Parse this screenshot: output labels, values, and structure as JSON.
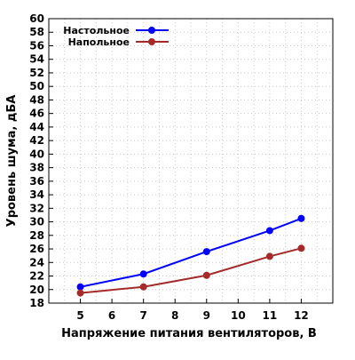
{
  "chart_data": {
    "type": "line",
    "xlabel": "Напряжение питания вентиляторов, В",
    "ylabel": "Уровень шума, дБА",
    "xlim": [
      4,
      13
    ],
    "ylim": [
      18,
      60
    ],
    "x_ticks": [
      5,
      6,
      7,
      8,
      9,
      10,
      11,
      12
    ],
    "y_ticks": [
      18,
      20,
      22,
      24,
      26,
      28,
      30,
      32,
      34,
      36,
      38,
      40,
      42,
      44,
      46,
      48,
      50,
      52,
      54,
      56,
      58,
      60
    ],
    "x_tick_labels": [
      "5",
      "6",
      "7",
      "8",
      "9",
      "10",
      "11",
      "12"
    ],
    "y_tick_labels": [
      "18",
      "20",
      "22",
      "24",
      "26",
      "28",
      "30",
      "32",
      "34",
      "36",
      "38",
      "40",
      "42",
      "44",
      "46",
      "48",
      "50",
      "52",
      "54",
      "56",
      "58",
      "60"
    ],
    "grid": true,
    "legend_position": "top-left",
    "series": [
      {
        "name": "Настольное",
        "color": "#0000ff",
        "x": [
          5,
          7,
          9,
          11,
          12
        ],
        "y": [
          20.4,
          22.3,
          25.6,
          28.7,
          30.5
        ]
      },
      {
        "name": "Напольное",
        "color": "#a52a2a",
        "x": [
          5,
          7,
          9,
          11,
          12
        ],
        "y": [
          19.5,
          20.4,
          22.1,
          24.9,
          26.1
        ]
      }
    ]
  }
}
